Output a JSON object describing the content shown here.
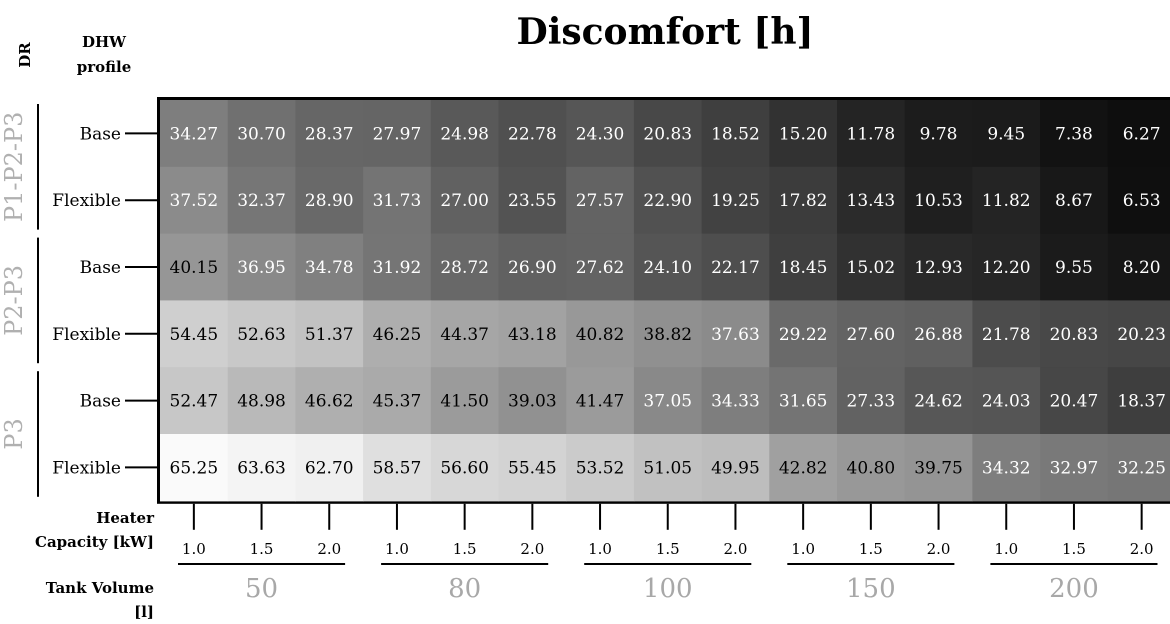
{
  "chart_data": {
    "type": "heatmap",
    "title": "Discomfort [h]",
    "corner_labels": {
      "dr": "DR",
      "dhw": "DHW profile"
    },
    "row_axis_label_dr": "DR",
    "row_groups": [
      {
        "name": "P1-P2-P3",
        "rows": [
          "Base",
          "Flexible"
        ]
      },
      {
        "name": "P2-P3",
        "rows": [
          "Base",
          "Flexible"
        ]
      },
      {
        "name": "P3",
        "rows": [
          "Base",
          "Flexible"
        ]
      }
    ],
    "heater_label": [
      "Heater",
      "Capacity [kW]"
    ],
    "tank_label": [
      "Tank Volume",
      "[l]"
    ],
    "tank_volumes": [
      "50",
      "80",
      "100",
      "150",
      "200"
    ],
    "heater_capacities": [
      "1.0",
      "1.5",
      "2.0"
    ],
    "values": [
      [
        34.27,
        30.7,
        28.37,
        27.97,
        24.98,
        22.78,
        24.3,
        20.83,
        18.52,
        15.2,
        11.78,
        9.78,
        9.45,
        7.38,
        6.27
      ],
      [
        37.52,
        32.37,
        28.9,
        31.73,
        27.0,
        23.55,
        27.57,
        22.9,
        19.25,
        17.82,
        13.43,
        10.53,
        11.82,
        8.67,
        6.53
      ],
      [
        40.15,
        36.95,
        34.78,
        31.92,
        28.72,
        26.9,
        27.62,
        24.1,
        22.17,
        18.45,
        15.02,
        12.93,
        12.2,
        9.55,
        8.2
      ],
      [
        54.45,
        52.63,
        51.37,
        46.25,
        44.37,
        43.18,
        40.82,
        38.82,
        37.63,
        29.22,
        27.6,
        26.88,
        21.78,
        20.83,
        20.23
      ],
      [
        52.47,
        48.98,
        46.62,
        45.37,
        41.5,
        39.03,
        41.47,
        37.05,
        34.33,
        31.65,
        27.33,
        24.62,
        24.03,
        20.47,
        18.37
      ],
      [
        65.25,
        63.63,
        62.7,
        58.57,
        56.6,
        55.45,
        53.52,
        51.05,
        49.95,
        42.82,
        40.8,
        39.75,
        34.32,
        32.97,
        32.25
      ]
    ],
    "color_range": [
      6.27,
      65.25
    ],
    "colormap": "grayscale (low = black, high = white)"
  }
}
